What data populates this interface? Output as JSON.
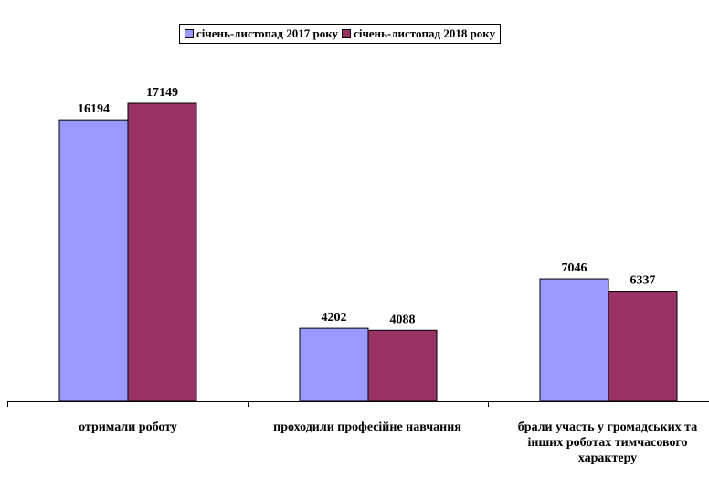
{
  "chart_data": {
    "type": "bar",
    "categories": [
      "отримали роботу",
      "проходили професійне навчання",
      "брали участь у громадських та інших роботах тимчасового характеру"
    ],
    "series": [
      {
        "name": "січень-листопад 2017 року",
        "values": [
          16194,
          4202,
          7046
        ],
        "color": "#9999ff"
      },
      {
        "name": "січень-листопад 2018 року",
        "values": [
          17149,
          4088,
          6337
        ],
        "color": "#993366"
      }
    ],
    "data_labels": [
      [
        "16194",
        "4202",
        "7046"
      ],
      [
        "17149",
        "4088",
        "6337"
      ]
    ],
    "ylim": [
      0,
      18000
    ],
    "grid": false,
    "legend_position": "top"
  }
}
